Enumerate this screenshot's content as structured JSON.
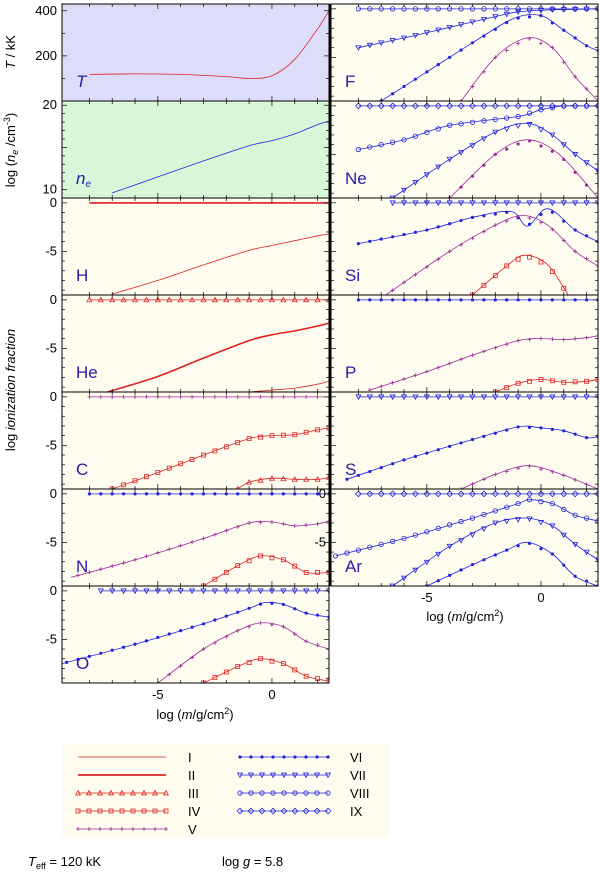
{
  "colors": {
    "red": "#dd2222",
    "blue": "#2222dd",
    "purple": "#9a2a9a",
    "label": "#2a1aa8",
    "bg_T": "#ddddfa",
    "bg_ne": "#d8f7d8",
    "bg_ion": "#fdfcee"
  },
  "axis_labels": {
    "T_y": "T / kK",
    "ne_y": "log (n_e /cm^-3)",
    "ion_y": "log ionization fraction",
    "x": "log (m/g/cm^2)"
  },
  "chart_data": [
    {
      "id": "T",
      "type": "line",
      "label": "T",
      "xlim": [
        -9.2,
        2.5
      ],
      "ylim": [
        0,
        430
      ],
      "yticks": [
        200,
        400
      ],
      "tick_labels": [
        "200",
        "400"
      ],
      "series": [
        {
          "name": "T",
          "color": "red",
          "x": [
            -8,
            -6,
            -4,
            -2,
            -1,
            0,
            1,
            2,
            2.5
          ],
          "y": [
            118,
            120,
            118,
            108,
            100,
            112,
            185,
            320,
            400
          ]
        }
      ]
    },
    {
      "id": "ne",
      "type": "line",
      "label": "n_e",
      "xlim": [
        -9.2,
        2.5
      ],
      "ylim": [
        9,
        20.5
      ],
      "yticks": [
        10,
        20
      ],
      "tick_labels": [
        "10",
        "20"
      ],
      "series": [
        {
          "name": "n_e",
          "color": "blue",
          "x": [
            -7,
            -5,
            -3,
            -1,
            0,
            1,
            2,
            2.5
          ],
          "y": [
            9.6,
            11.5,
            13.4,
            15.2,
            15.8,
            16.6,
            17.7,
            18.1
          ]
        }
      ]
    },
    {
      "id": "H",
      "type": "line",
      "label": "H",
      "xlim": [
        -9.2,
        2.5
      ],
      "ylim": [
        -9.5,
        0.5
      ],
      "yticks": [
        0,
        -5
      ],
      "tick_labels": [
        "0",
        "-5"
      ],
      "series": [
        {
          "name": "II",
          "color": "red",
          "x": [
            -8,
            2.5
          ],
          "y": [
            0,
            0
          ]
        },
        {
          "name": "I",
          "color": "red",
          "x": [
            -7,
            -5,
            -3,
            -1,
            0,
            1,
            2,
            2.5
          ],
          "y": [
            -9.4,
            -8.0,
            -6.4,
            -4.9,
            -4.4,
            -3.9,
            -3.4,
            -3.2
          ]
        }
      ]
    },
    {
      "id": "He",
      "type": "line",
      "label": "He",
      "xlim": [
        -9.2,
        2.5
      ],
      "ylim": [
        -9.5,
        0.5
      ],
      "yticks": [
        0,
        -5
      ],
      "tick_labels": [
        "0",
        "-5"
      ],
      "series": [
        {
          "name": "III",
          "color": "red",
          "x": [
            -8,
            2.5
          ],
          "y": [
            0,
            0
          ]
        },
        {
          "name": "II",
          "color": "red",
          "x": [
            -7.2,
            -5,
            -3,
            -1,
            0,
            1,
            2,
            2.5
          ],
          "y": [
            -9.5,
            -7.9,
            -6.0,
            -4.2,
            -3.6,
            -3.2,
            -2.7,
            -2.4
          ]
        },
        {
          "name": "I",
          "color": "red",
          "x": [
            -1,
            0,
            1,
            2,
            2.5
          ],
          "y": [
            -9.5,
            -9.3,
            -9.1,
            -8.7,
            -8.4
          ]
        }
      ]
    },
    {
      "id": "C",
      "type": "line",
      "label": "C",
      "xlim": [
        -9.2,
        2.5
      ],
      "ylim": [
        -9.5,
        0.5
      ],
      "yticks": [
        0,
        -5
      ],
      "tick_labels": [
        "0",
        "-5"
      ],
      "series": [
        {
          "name": "V",
          "color": "purple",
          "x": [
            -8,
            2.5
          ],
          "y": [
            0,
            0
          ]
        },
        {
          "name": "IV",
          "color": "red",
          "x": [
            -7,
            -5,
            -3,
            -1,
            0,
            1,
            2,
            2.5
          ],
          "y": [
            -9.5,
            -7.8,
            -6.0,
            -4.3,
            -4.0,
            -3.9,
            -3.4,
            -3.2
          ]
        },
        {
          "name": "III",
          "color": "red",
          "x": [
            -1.5,
            -1,
            0,
            1,
            2,
            2.5
          ],
          "y": [
            -9.5,
            -8.8,
            -8.4,
            -8.5,
            -8.5,
            -8.3
          ]
        }
      ]
    },
    {
      "id": "N",
      "type": "line",
      "label": "N",
      "xlim": [
        -9.2,
        2.5
      ],
      "ylim": [
        -9.5,
        0.5
      ],
      "yticks": [
        0,
        -5
      ],
      "tick_labels": [
        "0",
        "-5"
      ],
      "series": [
        {
          "name": "VI",
          "color": "blue",
          "x": [
            -8,
            2.5
          ],
          "y": [
            0,
            0
          ]
        },
        {
          "name": "V",
          "color": "purple",
          "x": [
            -8.8,
            -6,
            -3,
            -1,
            0,
            1,
            2,
            2.5
          ],
          "y": [
            -8.6,
            -6.8,
            -4.6,
            -3.0,
            -2.9,
            -3.3,
            -3.1,
            -2.8
          ]
        },
        {
          "name": "IV",
          "color": "red",
          "x": [
            -3,
            -1.5,
            -0.5,
            0.5,
            1.5,
            2.5
          ],
          "y": [
            -9.5,
            -7.4,
            -6.4,
            -6.8,
            -8.1,
            -8.1
          ]
        }
      ]
    },
    {
      "id": "O",
      "type": "line",
      "label": "O",
      "xlim": [
        -9.2,
        2.5
      ],
      "ylim": [
        -9.5,
        0.5
      ],
      "yticks": [
        0,
        -5
      ],
      "tick_labels": [
        "0",
        "-5"
      ],
      "xticks": [
        -5,
        0
      ],
      "xtick_labels": [
        "-5",
        "0"
      ],
      "series": [
        {
          "name": "VII",
          "color": "blue",
          "x": [
            -7.5,
            2.5
          ],
          "y": [
            0,
            0
          ]
        },
        {
          "name": "VI",
          "color": "blue",
          "x": [
            -9.2,
            -6,
            -3,
            -1,
            -0.3,
            0.5,
            1.5,
            2.5
          ],
          "y": [
            -7.5,
            -5.5,
            -3.4,
            -1.8,
            -1.2,
            -1.4,
            -2.3,
            -2.7
          ]
        },
        {
          "name": "V",
          "color": "purple",
          "x": [
            -5,
            -3,
            -1.5,
            -0.5,
            0.5,
            1.5,
            2.5
          ],
          "y": [
            -9.5,
            -6.0,
            -4.1,
            -3.3,
            -3.7,
            -5.2,
            -6.0
          ]
        },
        {
          "name": "IV",
          "color": "red",
          "x": [
            -3,
            -1.5,
            -0.5,
            0.5,
            1.5,
            2.5
          ],
          "y": [
            -9.5,
            -7.8,
            -7.0,
            -7.5,
            -8.8,
            -9.3
          ]
        }
      ]
    },
    {
      "id": "F",
      "type": "line",
      "label": "F",
      "xlim": [
        -9.2,
        2.5
      ],
      "ylim": [
        -9.5,
        0.5
      ],
      "series": [
        {
          "name": "VIII",
          "color": "blue",
          "x": [
            -8,
            2.5
          ],
          "y": [
            0,
            0
          ]
        },
        {
          "name": "VII",
          "color": "blue",
          "x": [
            -8,
            -6,
            -4,
            -2,
            -1,
            0.5,
            2.5
          ],
          "y": [
            -4.0,
            -3.0,
            -1.9,
            -0.8,
            -0.3,
            -0.1,
            0
          ]
        },
        {
          "name": "VI",
          "color": "blue",
          "x": [
            -7,
            -5,
            -3,
            -1.2,
            0,
            1,
            2,
            2.5
          ],
          "y": [
            -9.5,
            -6.5,
            -3.5,
            -1.0,
            -0.7,
            -2.2,
            -3.8,
            -4.3
          ]
        },
        {
          "name": "V",
          "color": "purple",
          "x": [
            -3.5,
            -2,
            -0.6,
            0.5,
            1.5,
            2.5
          ],
          "y": [
            -9.5,
            -5.0,
            -3.0,
            -4.0,
            -7.0,
            -9.5
          ]
        }
      ]
    },
    {
      "id": "Ne",
      "type": "line",
      "label": "Ne",
      "xlim": [
        -9.2,
        2.5
      ],
      "ylim": [
        -9.5,
        0.5
      ],
      "series": [
        {
          "name": "IX",
          "color": "blue",
          "x": [
            -8,
            2.5
          ],
          "y": [
            0,
            0
          ]
        },
        {
          "name": "VIII",
          "color": "blue",
          "x": [
            -8,
            -6,
            -4,
            -1,
            0,
            1,
            2,
            2.5
          ],
          "y": [
            -4.5,
            -3.5,
            -2.0,
            -1.1,
            -0.4,
            0,
            0,
            0
          ]
        },
        {
          "name": "VII",
          "color": "blue",
          "x": [
            -6.5,
            -4,
            -2,
            -0.6,
            0.5,
            1.5,
            2.5
          ],
          "y": [
            -9.5,
            -5.5,
            -2.7,
            -1.8,
            -3.0,
            -5.0,
            -6.7
          ]
        },
        {
          "name": "VI",
          "color": "purple",
          "x": [
            -4,
            -2,
            -0.6,
            0.8,
            2.5
          ],
          "y": [
            -9.5,
            -5.0,
            -3.5,
            -5.0,
            -9.5
          ]
        }
      ]
    },
    {
      "id": "Si",
      "type": "line",
      "label": "Si",
      "xlim": [
        -9.2,
        2.5
      ],
      "ylim": [
        -9.5,
        0.5
      ],
      "series": [
        {
          "name": "VII",
          "color": "blue",
          "x": [
            -6.5,
            -4,
            -2,
            2.5
          ],
          "y": [
            0,
            0,
            0,
            0
          ]
        },
        {
          "name": "VI",
          "color": "blue",
          "x": [
            -8,
            -5,
            -3,
            -1.3,
            -0.6,
            0.3,
            1.5,
            2.5
          ],
          "y": [
            -4.2,
            -2.8,
            -1.5,
            -0.9,
            -2.4,
            -0.6,
            -2.8,
            -4.0
          ]
        },
        {
          "name": "V",
          "color": "purple",
          "x": [
            -6.8,
            -4,
            -2,
            -0.8,
            0.3,
            1.5,
            2.5
          ],
          "y": [
            -9.5,
            -5.0,
            -2.3,
            -1.3,
            -2.3,
            -5.0,
            -6.5
          ]
        },
        {
          "name": "IV",
          "color": "red",
          "x": [
            -3,
            -1.5,
            -0.7,
            0.3,
            1.2
          ],
          "y": [
            -9.5,
            -6.5,
            -5.4,
            -6.4,
            -9.5
          ]
        }
      ]
    },
    {
      "id": "P",
      "type": "line",
      "label": "P",
      "xlim": [
        -9.2,
        2.5
      ],
      "ylim": [
        -9.5,
        0.5
      ],
      "series": [
        {
          "name": "VI",
          "color": "blue",
          "x": [
            -8,
            2.5
          ],
          "y": [
            0,
            0
          ]
        },
        {
          "name": "V",
          "color": "purple",
          "x": [
            -7.5,
            -5,
            -3,
            -1,
            0,
            1,
            2,
            2.5
          ],
          "y": [
            -9.3,
            -7.4,
            -5.7,
            -4.2,
            -4.0,
            -4.1,
            -3.9,
            -3.7
          ]
        },
        {
          "name": "IV",
          "color": "red",
          "x": [
            -2,
            -1,
            0,
            1,
            2,
            2.5
          ],
          "y": [
            -9.5,
            -8.6,
            -8.2,
            -8.5,
            -8.4,
            -8.2
          ]
        }
      ]
    },
    {
      "id": "S",
      "type": "line",
      "label": "S",
      "xlim": [
        -9.2,
        2.5
      ],
      "ylim": [
        -9.5,
        0.5
      ],
      "series": [
        {
          "name": "VII",
          "color": "blue",
          "x": [
            -8,
            2.5
          ],
          "y": [
            0,
            0
          ]
        },
        {
          "name": "VI",
          "color": "blue",
          "x": [
            -8.5,
            -6,
            -3,
            -1,
            0,
            1,
            2,
            2.5
          ],
          "y": [
            -8.5,
            -6.5,
            -4.4,
            -3.1,
            -3.2,
            -3.5,
            -4.2,
            -4.1
          ]
        },
        {
          "name": "V",
          "color": "purple",
          "x": [
            -3.5,
            -2,
            -0.6,
            0.8,
            2.5
          ],
          "y": [
            -9.5,
            -8.0,
            -7.1,
            -7.9,
            -9.5
          ]
        }
      ]
    },
    {
      "id": "Ar",
      "type": "line",
      "label": "Ar",
      "xlim": [
        -9.2,
        2.5
      ],
      "ylim": [
        -9.5,
        0.5
      ],
      "yticks": [
        0,
        -5
      ],
      "tick_labels": [
        "0",
        "-5"
      ],
      "xticks": [
        -5,
        0
      ],
      "xtick_labels": [
        "-5",
        "0"
      ],
      "series": [
        {
          "name": "IX",
          "color": "blue",
          "x": [
            -8,
            2.5
          ],
          "y": [
            0,
            0
          ]
        },
        {
          "name": "VIII",
          "color": "blue",
          "x": [
            -9,
            -6,
            -3,
            -1,
            -0.5,
            0.5,
            1.5,
            2.5
          ],
          "y": [
            -6.4,
            -4.6,
            -2.5,
            -1.0,
            -0.6,
            -1.0,
            -2.2,
            -2.8
          ]
        },
        {
          "name": "VII",
          "color": "blue",
          "x": [
            -6.5,
            -4,
            -2,
            -0.6,
            0.5,
            1.5,
            2.5
          ],
          "y": [
            -9.5,
            -5.4,
            -3.0,
            -2.5,
            -3.3,
            -5.2,
            -6.8
          ]
        },
        {
          "name": "VI",
          "color": "blue",
          "x": [
            -5,
            -3,
            -1.5,
            -0.6,
            0.5,
            1.5,
            2.5
          ],
          "y": [
            -9.5,
            -7.3,
            -5.8,
            -5.0,
            -6.2,
            -8.5,
            -9.5
          ]
        }
      ]
    }
  ],
  "legend": [
    {
      "label": "I",
      "color": "red",
      "marker": "none",
      "thick": false
    },
    {
      "label": "II",
      "color": "red",
      "marker": "none",
      "thick": true
    },
    {
      "label": "III",
      "color": "red",
      "marker": "triangle-up"
    },
    {
      "label": "IV",
      "color": "red",
      "marker": "square"
    },
    {
      "label": "V",
      "color": "purple",
      "marker": "plus"
    },
    {
      "label": "VI",
      "color": "blue",
      "marker": "dot"
    },
    {
      "label": "VII",
      "color": "blue",
      "marker": "triangle-down"
    },
    {
      "label": "VIII",
      "color": "blue",
      "marker": "circle"
    },
    {
      "label": "IX",
      "color": "blue",
      "marker": "diamond"
    }
  ],
  "footer": {
    "teff": "T_eff = 120 kK",
    "logg": "log g = 5.8"
  }
}
